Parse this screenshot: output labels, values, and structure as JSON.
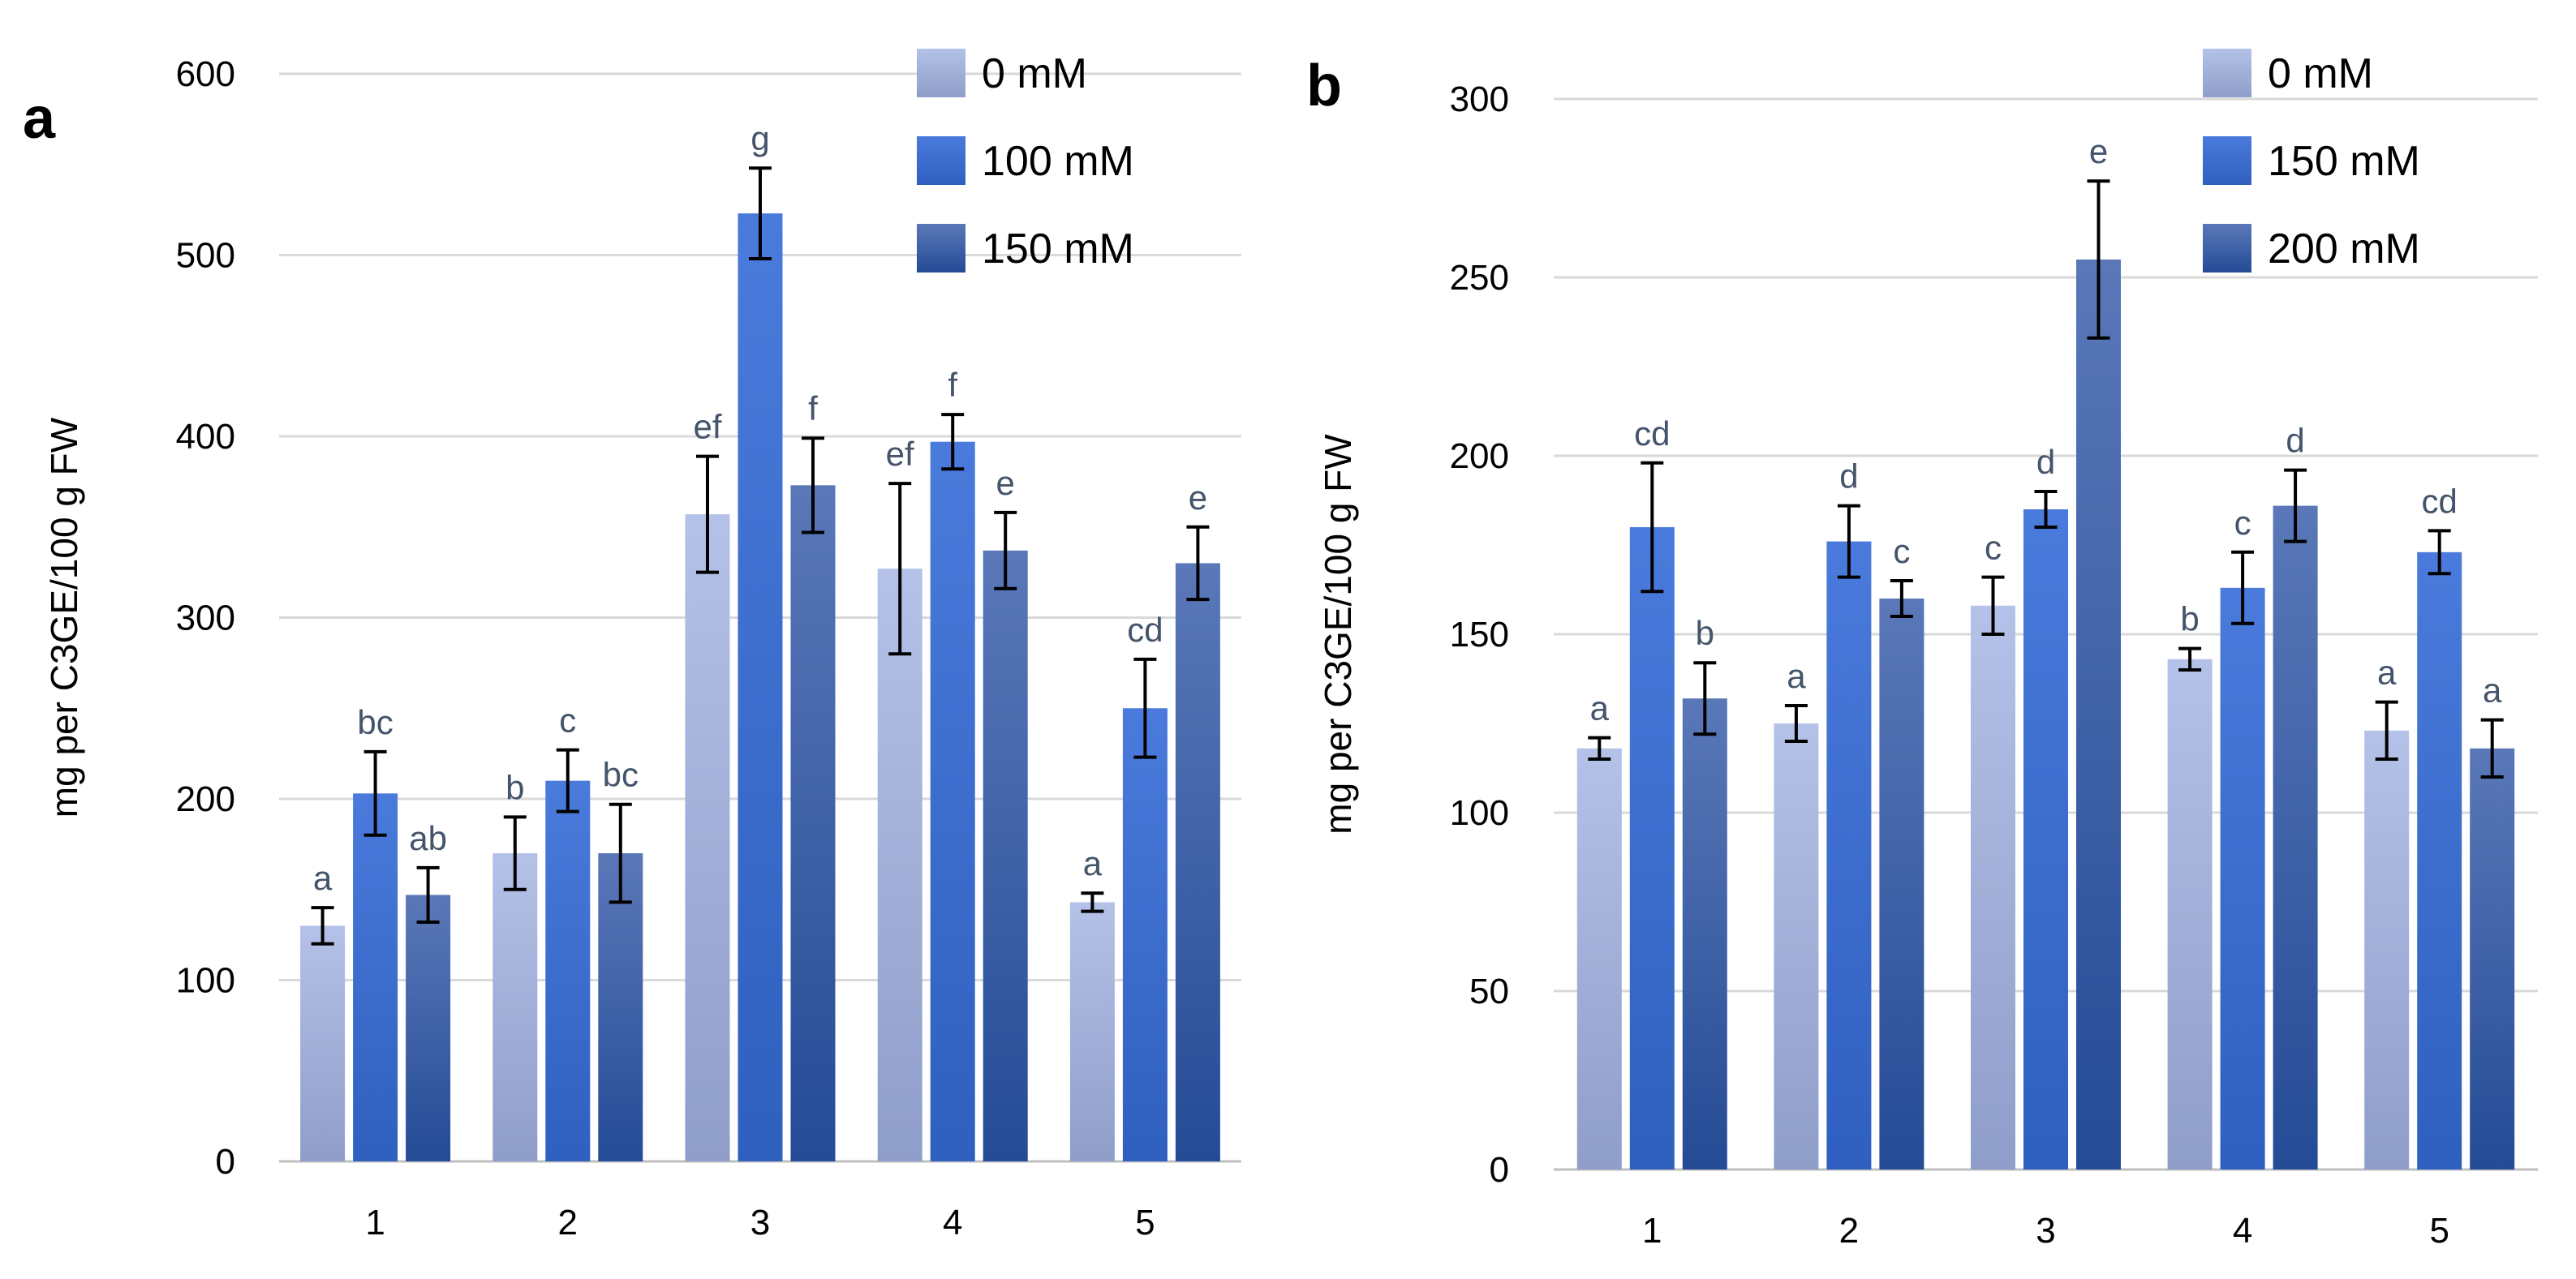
{
  "chart_data": [
    {
      "type": "bar",
      "panel_label": "a",
      "categories": [
        "1",
        "2",
        "3",
        "4",
        "5"
      ],
      "ylabel": "mg per C3GE/100 g FW",
      "xlabel": "",
      "ylim": [
        0,
        600
      ],
      "yticks": [
        "0",
        "100",
        "200",
        "300",
        "400",
        "500",
        "600"
      ],
      "grid": true,
      "legend_position": "top-right",
      "series": [
        {
          "name": "0 mM",
          "color": "#aab8e0",
          "values": [
            130,
            170,
            357,
            327,
            143
          ],
          "errors": [
            10,
            20,
            32,
            47,
            5
          ],
          "letters": [
            "a",
            "b",
            "ef",
            "ef",
            "a"
          ]
        },
        {
          "name": "100 mM",
          "color": "#3f6fd0",
          "values": [
            203,
            210,
            523,
            397,
            250
          ],
          "errors": [
            23,
            17,
            25,
            15,
            27
          ],
          "letters": [
            "bc",
            "c",
            "g",
            "f",
            "cd"
          ]
        },
        {
          "name": "150 mM",
          "color": "#2f559f",
          "values": [
            147,
            170,
            373,
            337,
            330
          ],
          "errors": [
            15,
            27,
            26,
            21,
            20
          ],
          "letters": [
            "ab",
            "bc",
            "f",
            "e",
            "e"
          ]
        }
      ]
    },
    {
      "type": "bar",
      "panel_label": "b",
      "categories": [
        "1",
        "2",
        "3",
        "4",
        "5"
      ],
      "ylabel": "mg per C3GE/100 g FW",
      "xlabel": "",
      "ylim": [
        0,
        300
      ],
      "yticks": [
        "0",
        "50",
        "100",
        "150",
        "200",
        "250",
        "300"
      ],
      "grid": true,
      "legend_position": "top-right",
      "series": [
        {
          "name": "0 mM",
          "color": "#aab8e0",
          "values": [
            118,
            125,
            158,
            143,
            123
          ],
          "errors": [
            3,
            5,
            8,
            3,
            8
          ],
          "letters": [
            "a",
            "a",
            "c",
            "b",
            "a"
          ]
        },
        {
          "name": "150 mM",
          "color": "#3f6fd0",
          "values": [
            180,
            176,
            185,
            163,
            173
          ],
          "errors": [
            18,
            10,
            5,
            10,
            6
          ],
          "letters": [
            "cd",
            "d",
            "d",
            "c",
            "cd"
          ]
        },
        {
          "name": "200 mM",
          "color": "#2f559f",
          "values": [
            132,
            160,
            255,
            186,
            118
          ],
          "errors": [
            10,
            5,
            22,
            10,
            8
          ],
          "letters": [
            "b",
            "c",
            "e",
            "d",
            "a"
          ]
        }
      ]
    }
  ]
}
